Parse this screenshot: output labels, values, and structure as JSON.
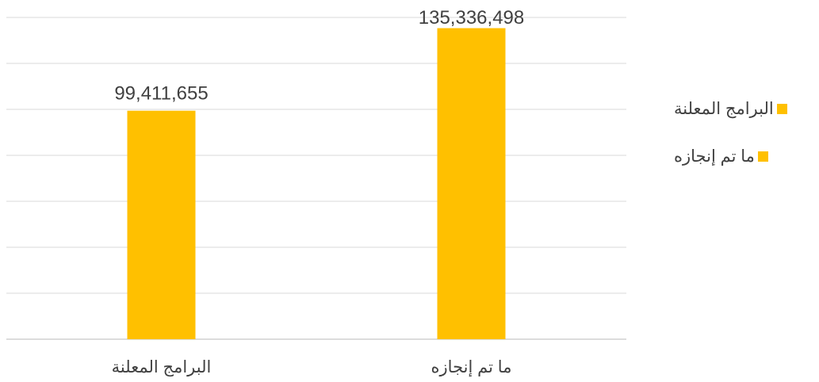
{
  "chart_data": {
    "type": "bar",
    "categories": [
      "البرامج المعلنة",
      "ما تم إنجازه"
    ],
    "values": [
      99411655,
      135336498
    ],
    "data_labels": [
      "99,411,655",
      "135,336,498"
    ],
    "ylim": [
      0,
      140000000
    ],
    "grid": true,
    "legend_placement": "right",
    "bar_color": "#FFC000",
    "legend": [
      {
        "label": "البرامج المعلنة",
        "color": "#FFC000"
      },
      {
        "label": "ما تم إنجازه",
        "color": "#FFC000"
      }
    ]
  }
}
